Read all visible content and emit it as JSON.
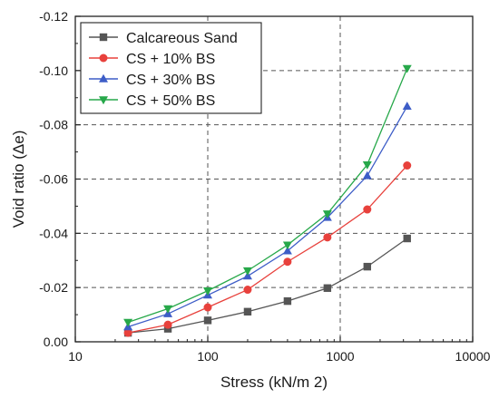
{
  "chart_data": {
    "type": "line",
    "xlabel": "Stress (kN/m 2)",
    "ylabel": "Void ratio (Δe)",
    "x_scale": "log",
    "xlim": [
      10,
      10000
    ],
    "ylim": [
      0.0,
      -0.12
    ],
    "y_inverted": true,
    "x_ticks": [
      10,
      100,
      1000,
      10000
    ],
    "x_tick_labels": [
      "10",
      "100",
      "1000",
      "10000"
    ],
    "y_ticks": [
      0.0,
      -0.02,
      -0.04,
      -0.06,
      -0.08,
      -0.1,
      -0.12
    ],
    "y_tick_labels": [
      "0.00",
      "-0.02",
      "-0.04",
      "-0.06",
      "-0.08",
      "-0.10",
      "-0.12"
    ],
    "grid": "dashed at major ticks",
    "legend_position": "top-left",
    "x": [
      25,
      50,
      100,
      200,
      400,
      800,
      1600,
      3200
    ],
    "series": [
      {
        "name": "Calcareous Sand",
        "marker": "square",
        "color": "#555555",
        "values": [
          -0.0033,
          -0.0048,
          -0.0079,
          -0.0111,
          -0.015,
          -0.0198,
          -0.0277,
          -0.0381
        ]
      },
      {
        "name": "CS + 10% BS",
        "marker": "circle",
        "color": "#e8413c",
        "values": [
          -0.0033,
          -0.0063,
          -0.0127,
          -0.0192,
          -0.0295,
          -0.0385,
          -0.0488,
          -0.065
        ]
      },
      {
        "name": "CS + 30% BS",
        "marker": "triangle-up",
        "color": "#3d5dc7",
        "values": [
          -0.0055,
          -0.0103,
          -0.0172,
          -0.0242,
          -0.0335,
          -0.0458,
          -0.0612,
          -0.0868
        ]
      },
      {
        "name": "CS + 50% BS",
        "marker": "triangle-down",
        "color": "#27a84a",
        "values": [
          -0.0072,
          -0.0122,
          -0.0188,
          -0.0262,
          -0.0357,
          -0.0472,
          -0.0653,
          -0.1008
        ]
      }
    ]
  }
}
